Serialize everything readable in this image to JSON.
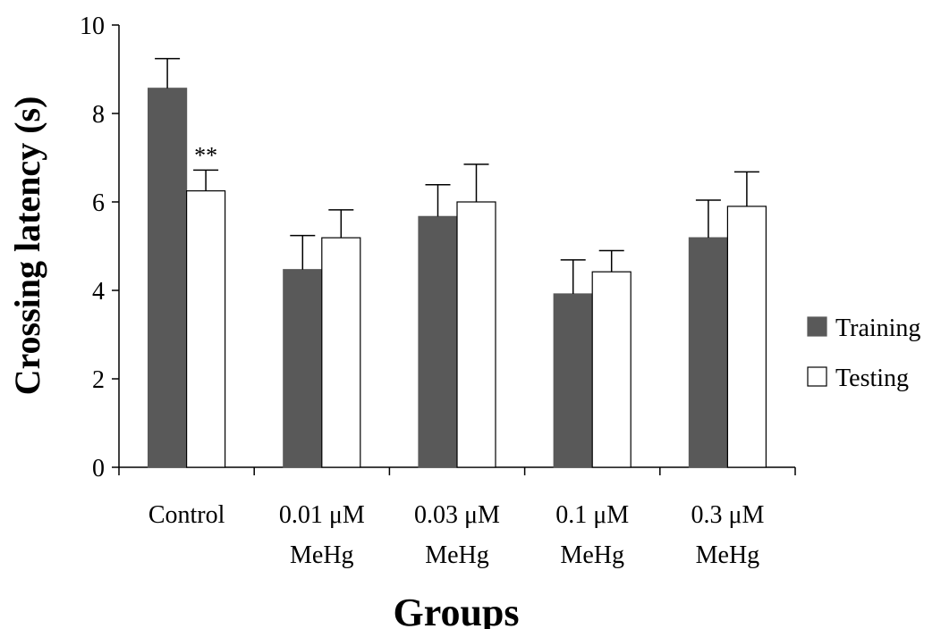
{
  "chart_data": {
    "type": "bar",
    "categories": [
      [
        "Control"
      ],
      [
        "0.01 μM",
        "MeHg"
      ],
      [
        "0.03 μM",
        "MeHg"
      ],
      [
        "0.1 μM",
        "MeHg"
      ],
      [
        "0.3 μM",
        "MeHg"
      ]
    ],
    "series": [
      {
        "name": "Training",
        "color": "#595959",
        "values": [
          8.57,
          4.47,
          5.67,
          3.92,
          5.19
        ],
        "errors": [
          0.67,
          0.77,
          0.72,
          0.77,
          0.85
        ]
      },
      {
        "name": "Testing",
        "color": "#ffffff",
        "values": [
          6.25,
          5.19,
          6.0,
          4.42,
          5.9
        ],
        "errors": [
          0.47,
          0.63,
          0.85,
          0.48,
          0.78
        ]
      }
    ],
    "xlabel": "Groups",
    "ylabel": "Crossing latency (s)",
    "ylim": [
      0,
      10
    ],
    "yticks": [
      "0",
      "2",
      "4",
      "6",
      "8",
      "10"
    ],
    "annotations": [
      {
        "text": "**",
        "category_index": 0,
        "series_index": 1
      }
    ],
    "legend_position": "right",
    "grid": false
  }
}
